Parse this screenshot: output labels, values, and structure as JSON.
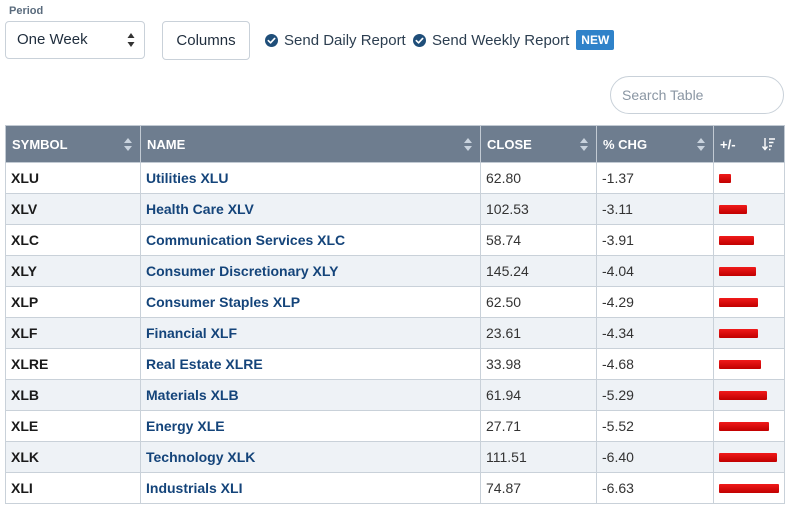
{
  "filters": {
    "period_label": "Period",
    "period_value": "One Week",
    "columns_label": "Columns",
    "daily_report_label": "Send Daily Report",
    "weekly_report_label": "Send Weekly Report",
    "new_badge": "NEW",
    "accent_color": "#1f4e79",
    "badge_color": "#2f82c9"
  },
  "search": {
    "placeholder": "Search Table"
  },
  "table": {
    "columns": [
      "SYMBOL",
      "NAME",
      "CLOSE",
      "% CHG",
      "+/-"
    ],
    "bar_color": "#d90000",
    "rows": [
      {
        "symbol": "XLU",
        "name": "Utilities XLU",
        "close": "62.80",
        "chg": "-1.37"
      },
      {
        "symbol": "XLV",
        "name": "Health Care XLV",
        "close": "102.53",
        "chg": "-3.11"
      },
      {
        "symbol": "XLC",
        "name": "Communication Services XLC",
        "close": "58.74",
        "chg": "-3.91"
      },
      {
        "symbol": "XLY",
        "name": "Consumer Discretionary XLY",
        "close": "145.24",
        "chg": "-4.04"
      },
      {
        "symbol": "XLP",
        "name": "Consumer Staples XLP",
        "close": "62.50",
        "chg": "-4.29"
      },
      {
        "symbol": "XLF",
        "name": "Financial XLF",
        "close": "23.61",
        "chg": "-4.34"
      },
      {
        "symbol": "XLRE",
        "name": "Real Estate XLRE",
        "close": "33.98",
        "chg": "-4.68"
      },
      {
        "symbol": "XLB",
        "name": "Materials XLB",
        "close": "61.94",
        "chg": "-5.29"
      },
      {
        "symbol": "XLE",
        "name": "Energy XLE",
        "close": "27.71",
        "chg": "-5.52"
      },
      {
        "symbol": "XLK",
        "name": "Technology XLK",
        "close": "111.51",
        "chg": "-6.40"
      },
      {
        "symbol": "XLI",
        "name": "Industrials XLI",
        "close": "74.87",
        "chg": "-6.63"
      }
    ]
  }
}
